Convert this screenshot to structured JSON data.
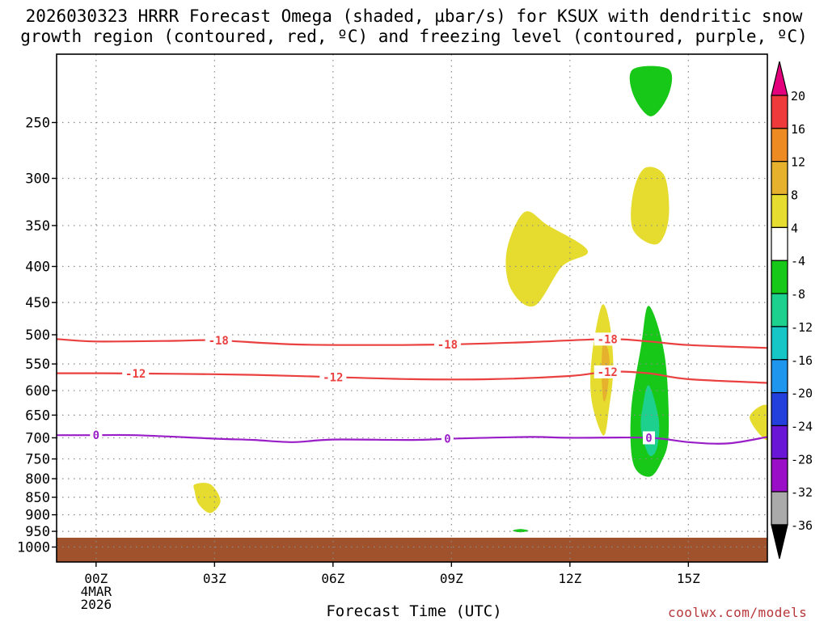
{
  "chart_data": {
    "type": "contour",
    "title_line1": "2026030323 HRRR Forecast Omega (shaded, µbar/s) for KSUX with dendritic snow",
    "title_line2": "growth region (contoured, red, ºC) and freezing level (contoured, purple, ºC)",
    "xlabel": "Forecast Time (UTC)",
    "x_ticks": [
      "00Z",
      "03Z",
      "06Z",
      "09Z",
      "12Z",
      "15Z"
    ],
    "x_tick_hours": [
      0,
      3,
      6,
      9,
      12,
      15
    ],
    "x_date_line1": "4MAR",
    "x_date_line2": "2026",
    "x_range_hours": [
      -1,
      17
    ],
    "y_ticks": [
      250,
      300,
      350,
      400,
      450,
      500,
      550,
      600,
      650,
      700,
      750,
      800,
      850,
      900,
      950,
      1000
    ],
    "y_range_mb": [
      200,
      1050
    ],
    "colorbar_labels": [
      "20",
      "16",
      "12",
      "8",
      "4",
      "-4",
      "-8",
      "-12",
      "-16",
      "-20",
      "-24",
      "-28",
      "-32",
      "-36"
    ],
    "colorbar_colors": [
      "#e4007c",
      "#ee3a3a",
      "#ee8a22",
      "#e6b22e",
      "#e6dc30",
      "#ffffff",
      "#18c818",
      "#1ed08e",
      "#16c6c6",
      "#1e96ee",
      "#2440dc",
      "#6a16d6",
      "#9a0ec8",
      "#aaaaaa",
      "#000000"
    ],
    "omega_regions": [
      {
        "label": "rising upper",
        "color": "#18c818",
        "points": [
          [
            13.6,
            210
          ],
          [
            14.5,
            210
          ],
          [
            14.5,
            228
          ],
          [
            14.05,
            245
          ],
          [
            13.6,
            228
          ]
        ]
      },
      {
        "label": "sinking 300",
        "color": "#e6dc30",
        "points": [
          [
            13.6,
            315
          ],
          [
            13.9,
            290
          ],
          [
            14.4,
            298
          ],
          [
            14.5,
            342
          ],
          [
            14.2,
            372
          ],
          [
            13.6,
            355
          ]
        ]
      },
      {
        "label": "sinking 380",
        "color": "#e6dc30",
        "points": [
          [
            10.4,
            380
          ],
          [
            10.85,
            335
          ],
          [
            11.45,
            350
          ],
          [
            12.45,
            380
          ],
          [
            11.8,
            400
          ],
          [
            11.1,
            455
          ],
          [
            10.5,
            430
          ]
        ]
      },
      {
        "label": "sinking dgz",
        "color": "#e6dc30",
        "points": [
          [
            12.55,
            540
          ],
          [
            12.8,
            455
          ],
          [
            13.0,
            480
          ],
          [
            13.1,
            555
          ],
          [
            13.0,
            630
          ],
          [
            12.85,
            695
          ],
          [
            12.55,
            620
          ]
        ]
      },
      {
        "label": "sinking dgz core",
        "color": "#e6b22e",
        "points": [
          [
            12.85,
            510
          ],
          [
            13.0,
            540
          ],
          [
            12.95,
            600
          ],
          [
            12.85,
            620
          ],
          [
            12.8,
            560
          ]
        ]
      },
      {
        "label": "rising main",
        "color": "#18c818",
        "points": [
          [
            14.0,
            455
          ],
          [
            14.4,
            535
          ],
          [
            14.5,
            690
          ],
          [
            14.3,
            760
          ],
          [
            14.0,
            795
          ],
          [
            13.6,
            760
          ],
          [
            13.55,
            640
          ],
          [
            13.8,
            520
          ]
        ]
      },
      {
        "label": "rising main core",
        "color": "#1ed08e",
        "points": [
          [
            14.0,
            590
          ],
          [
            14.25,
            660
          ],
          [
            14.2,
            725
          ],
          [
            14.0,
            740
          ],
          [
            13.8,
            680
          ],
          [
            13.85,
            630
          ]
        ]
      },
      {
        "label": "sinking edge",
        "color": "#e6dc30",
        "points": [
          [
            16.55,
            655
          ],
          [
            17.0,
            630
          ],
          [
            17.0,
            705
          ]
        ]
      },
      {
        "label": "sinking 850",
        "color": "#e6dc30",
        "points": [
          [
            2.5,
            815
          ],
          [
            2.9,
            815
          ],
          [
            3.15,
            860
          ],
          [
            2.9,
            895
          ],
          [
            2.6,
            870
          ],
          [
            2.5,
            835
          ]
        ]
      },
      {
        "label": "rising 950",
        "color": "#18c818",
        "points": [
          [
            10.55,
            948
          ],
          [
            10.75,
            943
          ],
          [
            10.95,
            948
          ],
          [
            10.75,
            953
          ]
        ]
      }
    ],
    "contours": [
      {
        "label": "-18",
        "color": "#ea4040",
        "points": [
          [
            -1,
            507
          ],
          [
            0,
            511
          ],
          [
            2,
            510
          ],
          [
            3,
            509
          ],
          [
            5,
            516
          ],
          [
            7,
            517
          ],
          [
            9,
            516
          ],
          [
            11,
            512
          ],
          [
            13,
            507
          ],
          [
            14,
            511
          ],
          [
            15,
            517
          ],
          [
            17,
            522
          ]
        ],
        "label_hours": [
          3.1,
          8.9,
          12.95
        ]
      },
      {
        "label": "-12",
        "color": "#ea4040",
        "points": [
          [
            -1,
            567
          ],
          [
            0,
            567
          ],
          [
            2,
            568
          ],
          [
            4,
            570
          ],
          [
            6,
            574
          ],
          [
            8,
            578
          ],
          [
            10,
            578
          ],
          [
            12,
            572
          ],
          [
            13,
            564
          ],
          [
            14,
            567
          ],
          [
            15,
            578
          ],
          [
            17,
            585
          ]
        ],
        "label_hours": [
          1.0,
          6.0,
          12.95
        ]
      },
      {
        "label": "0",
        "color": "#9a1ec8",
        "points": [
          [
            -1,
            694
          ],
          [
            0,
            694
          ],
          [
            1,
            694
          ],
          [
            3,
            702
          ],
          [
            4,
            705
          ],
          [
            5,
            710
          ],
          [
            6,
            704
          ],
          [
            8,
            705
          ],
          [
            9,
            702
          ],
          [
            11,
            698
          ],
          [
            12,
            700
          ],
          [
            14,
            700
          ],
          [
            15,
            710
          ],
          [
            16,
            713
          ],
          [
            17,
            698
          ]
        ],
        "label_hours": [
          0.0,
          8.9,
          14.0
        ]
      }
    ],
    "ground_band_mb": [
      970,
      1050
    ]
  },
  "credit": "coolwx.com/models"
}
